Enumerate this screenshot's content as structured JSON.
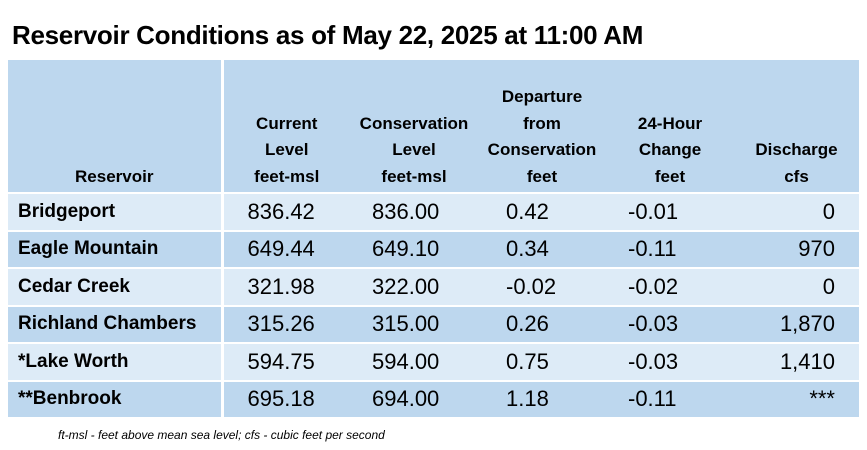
{
  "title": "Reservoir Conditions as of May 22, 2025 at 11:00 AM",
  "columns": [
    {
      "lines": [
        "",
        "",
        "",
        "Reservoir"
      ]
    },
    {
      "lines": [
        "",
        "Current",
        "Level",
        "feet-msl"
      ]
    },
    {
      "lines": [
        "",
        "Conservation",
        "Level",
        "feet-msl"
      ]
    },
    {
      "lines": [
        "Departure",
        "from",
        "Conservation",
        "feet"
      ]
    },
    {
      "lines": [
        "",
        "24-Hour",
        "Change",
        "feet"
      ]
    },
    {
      "lines": [
        "",
        "",
        "Discharge",
        "cfs"
      ]
    }
  ],
  "rows": [
    {
      "name": "Bridgeport",
      "current": "836.42",
      "conservation": "836.00",
      "departure": "0.42",
      "change": "-0.01",
      "discharge": "0"
    },
    {
      "name": "Eagle Mountain",
      "current": "649.44",
      "conservation": "649.10",
      "departure": "0.34",
      "change": "-0.11",
      "discharge": "970"
    },
    {
      "name": "Cedar Creek",
      "current": "321.98",
      "conservation": "322.00",
      "departure": "-0.02",
      "change": "-0.02",
      "discharge": "0"
    },
    {
      "name": "Richland Chambers",
      "current": "315.26",
      "conservation": "315.00",
      "departure": "0.26",
      "change": "-0.03",
      "discharge": "1,870"
    },
    {
      "name": "*Lake Worth",
      "current": "594.75",
      "conservation": "594.00",
      "departure": "0.75",
      "change": "-0.03",
      "discharge": "1,410"
    },
    {
      "name": "**Benbrook",
      "current": "695.18",
      "conservation": "694.00",
      "departure": "1.18",
      "change": "-0.11",
      "discharge": "***"
    }
  ],
  "footnote": "ft-msl - feet above mean sea level; cfs - cubic feet per second",
  "colors": {
    "header_bg": "#bdd7ee",
    "row_light": "#ddebf7",
    "row_dark": "#bdd7ee"
  }
}
